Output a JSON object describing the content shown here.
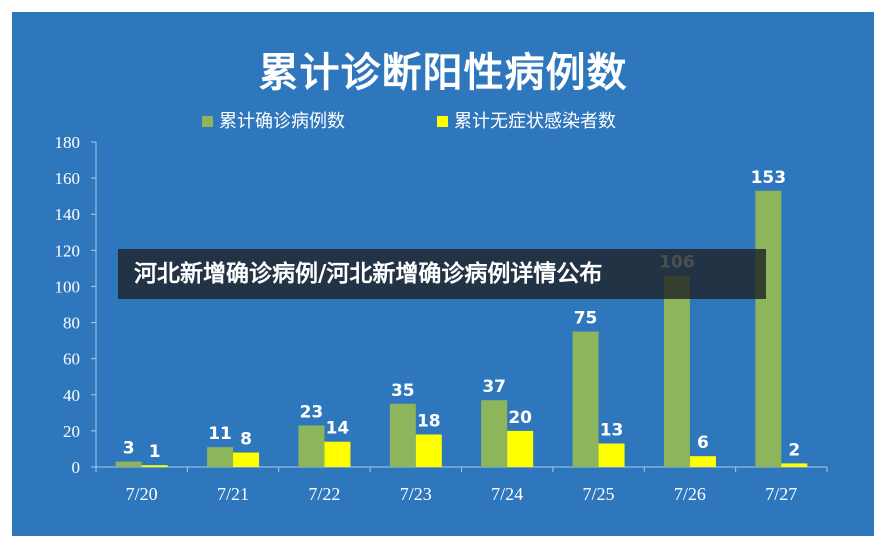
{
  "chart_data": {
    "type": "bar",
    "title": "累计诊断阳性病例数",
    "categories": [
      "7/20",
      "7/21",
      "7/22",
      "7/23",
      "7/24",
      "7/25",
      "7/26",
      "7/27"
    ],
    "series": [
      {
        "name": "累计确诊病例数",
        "values": [
          3,
          11,
          23,
          35,
          37,
          75,
          106,
          153
        ],
        "color": "#8db55b"
      },
      {
        "name": "累计无症状感染者数",
        "values": [
          1,
          8,
          14,
          18,
          20,
          13,
          6,
          2
        ],
        "color": "#ffff00"
      }
    ],
    "ylim": [
      0,
      180
    ],
    "yticks": [
      0,
      20,
      40,
      60,
      80,
      100,
      120,
      140,
      160,
      180
    ],
    "grid": false,
    "legend_position": "top-center",
    "background_color": "#2f77bd"
  },
  "overlay": {
    "headline": "河北新增确诊病例/河北新增确诊病例详情公布"
  }
}
